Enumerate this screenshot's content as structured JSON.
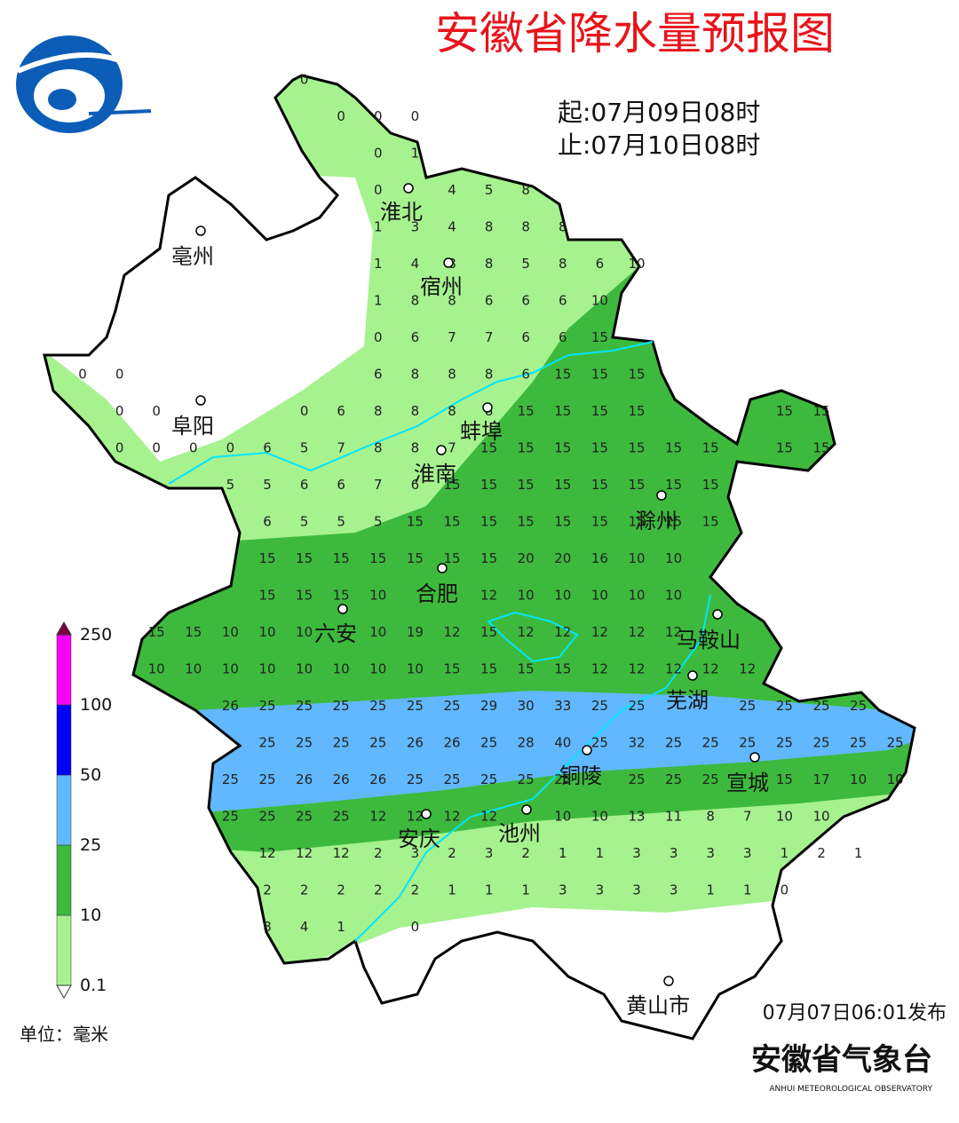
{
  "header": {
    "title": "安徽省降水量预报图",
    "start": "起:07月09日08时",
    "end": "止:07月10日08时"
  },
  "cities": [
    "淮北",
    "亳州",
    "宿州",
    "阜阳",
    "蚌埠",
    "淮南",
    "滁州",
    "合肥",
    "六安",
    "马鞍山",
    "芜湖",
    "铜陵",
    "宣城",
    "安庆",
    "池州",
    "黄山市"
  ],
  "grid": {
    "rows": [
      [
        null,
        null,
        null,
        null,
        null,
        null,
        0,
        null,
        null,
        null,
        null,
        null,
        null,
        null,
        null,
        null,
        null,
        null,
        null,
        null,
        null,
        null,
        null
      ],
      [
        null,
        null,
        null,
        null,
        null,
        null,
        null,
        0,
        0,
        0,
        null,
        null,
        null,
        null,
        null,
        null,
        null,
        null,
        null,
        null,
        null,
        null,
        null
      ],
      [
        null,
        null,
        null,
        null,
        null,
        null,
        null,
        null,
        0,
        1,
        null,
        null,
        null,
        null,
        null,
        null,
        null,
        null,
        null,
        null,
        null,
        null,
        null
      ],
      [
        null,
        null,
        null,
        null,
        null,
        null,
        null,
        null,
        0,
        null,
        4,
        5,
        8,
        null,
        null,
        null,
        null,
        null,
        null,
        null,
        null,
        null,
        null
      ],
      [
        null,
        null,
        null,
        null,
        null,
        null,
        null,
        null,
        1,
        3,
        4,
        8,
        8,
        8,
        null,
        null,
        null,
        null,
        null,
        null,
        null,
        null,
        null
      ],
      [
        null,
        null,
        null,
        null,
        null,
        null,
        null,
        null,
        1,
        4,
        8,
        8,
        5,
        8,
        6,
        10,
        null,
        null,
        null,
        null,
        null,
        null,
        null
      ],
      [
        null,
        null,
        null,
        null,
        null,
        null,
        null,
        null,
        1,
        8,
        8,
        6,
        6,
        6,
        10,
        null,
        null,
        null,
        null,
        null,
        null,
        null,
        null
      ],
      [
        null,
        null,
        null,
        null,
        null,
        null,
        null,
        null,
        0,
        6,
        7,
        7,
        6,
        6,
        15,
        null,
        null,
        null,
        null,
        null,
        null,
        null,
        null
      ],
      [
        0,
        0,
        null,
        null,
        null,
        null,
        null,
        null,
        6,
        8,
        8,
        8,
        6,
        15,
        15,
        15,
        null,
        null,
        null,
        null,
        null,
        null,
        null
      ],
      [
        null,
        0,
        0,
        null,
        null,
        null,
        0,
        6,
        8,
        8,
        8,
        8,
        15,
        15,
        15,
        15,
        null,
        null,
        null,
        15,
        15,
        null,
        null
      ],
      [
        null,
        0,
        0,
        0,
        0,
        6,
        5,
        7,
        8,
        8,
        7,
        15,
        15,
        15,
        15,
        15,
        15,
        15,
        null,
        15,
        15,
        null,
        null
      ],
      [
        null,
        null,
        null,
        null,
        5,
        5,
        6,
        6,
        7,
        6,
        15,
        15,
        15,
        15,
        15,
        15,
        15,
        15,
        null,
        null,
        null,
        null,
        null
      ],
      [
        null,
        null,
        null,
        null,
        null,
        6,
        5,
        5,
        5,
        15,
        15,
        15,
        15,
        15,
        15,
        15,
        15,
        15,
        null,
        null,
        null,
        null,
        null
      ],
      [
        null,
        null,
        null,
        null,
        null,
        15,
        15,
        15,
        15,
        15,
        15,
        15,
        20,
        20,
        16,
        10,
        10,
        null,
        null,
        null,
        null,
        null,
        null
      ],
      [
        null,
        null,
        null,
        null,
        null,
        15,
        15,
        15,
        10,
        null,
        null,
        12,
        10,
        10,
        10,
        10,
        10,
        null,
        null,
        null,
        null,
        null,
        null
      ],
      [
        null,
        null,
        15,
        15,
        10,
        10,
        10,
        null,
        10,
        19,
        12,
        15,
        12,
        12,
        12,
        12,
        12,
        null,
        null,
        null,
        null,
        null,
        null
      ],
      [
        null,
        null,
        10,
        10,
        10,
        10,
        10,
        10,
        10,
        10,
        15,
        15,
        15,
        15,
        12,
        12,
        12,
        12,
        12,
        null,
        null,
        null,
        null
      ],
      [
        null,
        null,
        null,
        null,
        26,
        25,
        25,
        25,
        25,
        25,
        25,
        29,
        30,
        33,
        25,
        25,
        null,
        null,
        25,
        25,
        25,
        25,
        null
      ],
      [
        null,
        null,
        null,
        null,
        null,
        25,
        25,
        25,
        25,
        26,
        26,
        25,
        28,
        40,
        25,
        32,
        25,
        25,
        25,
        25,
        25,
        25,
        25
      ],
      [
        null,
        null,
        null,
        null,
        25,
        25,
        26,
        26,
        26,
        25,
        25,
        25,
        25,
        25,
        null,
        25,
        25,
        25,
        null,
        15,
        17,
        10,
        10
      ],
      [
        null,
        null,
        null,
        null,
        25,
        25,
        25,
        25,
        12,
        12,
        12,
        12,
        null,
        10,
        10,
        13,
        11,
        8,
        7,
        10,
        10,
        null,
        null
      ],
      [
        null,
        null,
        null,
        null,
        null,
        12,
        12,
        12,
        2,
        3,
        2,
        3,
        2,
        1,
        1,
        3,
        3,
        3,
        3,
        1,
        2,
        1,
        null
      ],
      [
        null,
        null,
        null,
        null,
        null,
        2,
        2,
        2,
        2,
        2,
        1,
        1,
        1,
        3,
        3,
        3,
        3,
        1,
        1,
        0,
        null,
        null,
        null
      ],
      [
        null,
        null,
        null,
        null,
        null,
        8,
        4,
        1,
        null,
        0,
        null,
        null,
        null,
        null,
        null,
        null,
        null,
        null,
        null,
        null,
        null,
        null,
        null
      ]
    ]
  },
  "legend": {
    "levels": [
      0.1,
      10,
      25,
      50,
      100,
      250
    ],
    "colors": [
      "#a6f28f",
      "#3dba3d",
      "#61b8ff",
      "#0000fe",
      "#fa00fa"
    ],
    "unit": "单位：毫米"
  },
  "footer": {
    "issued": "07月07日06:01发布",
    "organization": "安徽省气象台",
    "organization_en": "ANHUI METEOROLOGICAL OBSERVATORY"
  }
}
